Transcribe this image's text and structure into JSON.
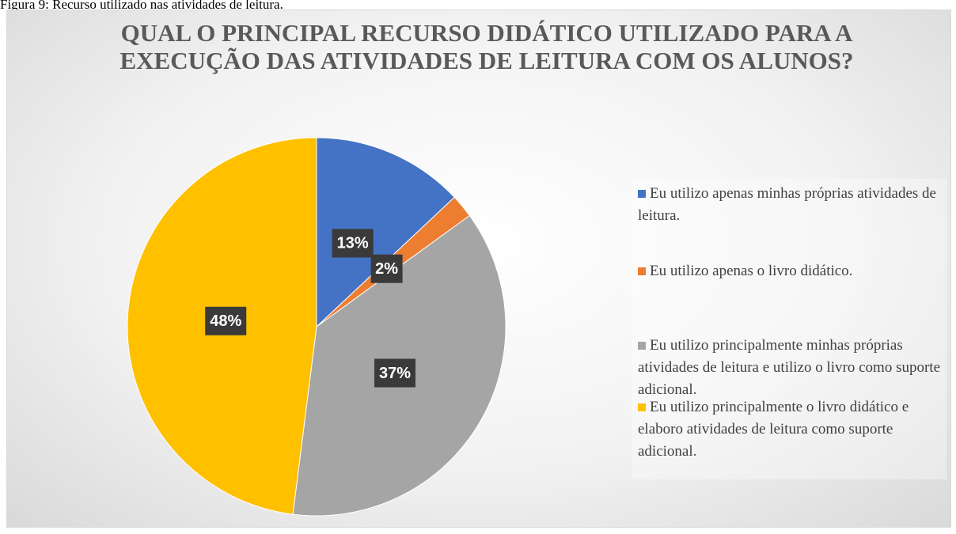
{
  "caption": "Figura 9: Recurso utilizado nas atividades de leitura.",
  "chart_data": {
    "type": "pie",
    "title": "QUAL O PRINCIPAL RECURSO DIDÁTICO UTILIZADO PARA A EXECUÇÃO DAS ATIVIDADES DE LEITURA COM OS ALUNOS?",
    "categories": [
      "Eu utilizo apenas minhas próprias atividades de leitura.",
      "Eu utilizo apenas o livro didático.",
      "Eu utilizo principalmente minhas próprias atividades de leitura e utilizo o livro como suporte adicional.",
      "Eu utilizo principalmente o livro didático e elaboro atividades de leitura como suporte adicional."
    ],
    "values": [
      13,
      2,
      37,
      48
    ],
    "value_labels": [
      "13%",
      "2%",
      "37%",
      "48%"
    ],
    "colors": [
      "#4472c4",
      "#ed7d31",
      "#a5a5a5",
      "#ffc000"
    ],
    "legend": "right"
  }
}
